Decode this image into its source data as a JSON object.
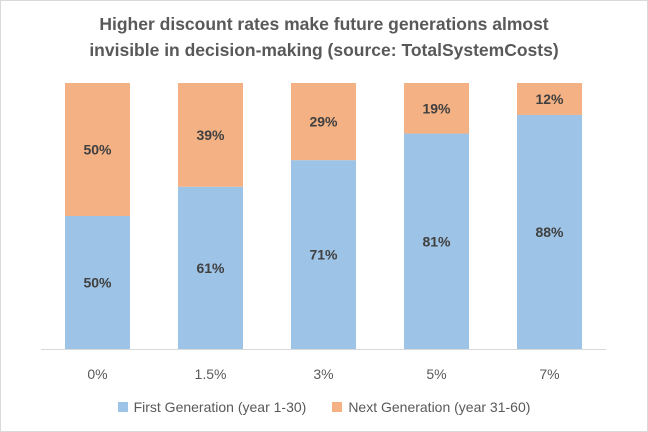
{
  "chart_data": {
    "type": "bar",
    "stacked": true,
    "percent_stacked": true,
    "title_lines": [
      "Higher discount rates make future generations almost",
      "invisible in decision-making (source: TotalSystemCosts)"
    ],
    "categories": [
      "0%",
      "1.5%",
      "3%",
      "5%",
      "7%"
    ],
    "series": [
      {
        "name": "First Generation (year 1-30)",
        "color": "#9dc3e6",
        "values": [
          50,
          61,
          71,
          81,
          88
        ],
        "labels": [
          "50%",
          "61%",
          "71%",
          "81%",
          "88%"
        ]
      },
      {
        "name": "Next Generation (year 31-60)",
        "color": "#f4b183",
        "values": [
          50,
          39,
          29,
          19,
          12
        ],
        "labels": [
          "50%",
          "39%",
          "29%",
          "19%",
          "12%"
        ]
      }
    ],
    "ylim": [
      0,
      100
    ],
    "grid": false,
    "legend_position": "bottom",
    "xlabel": "",
    "ylabel": ""
  }
}
